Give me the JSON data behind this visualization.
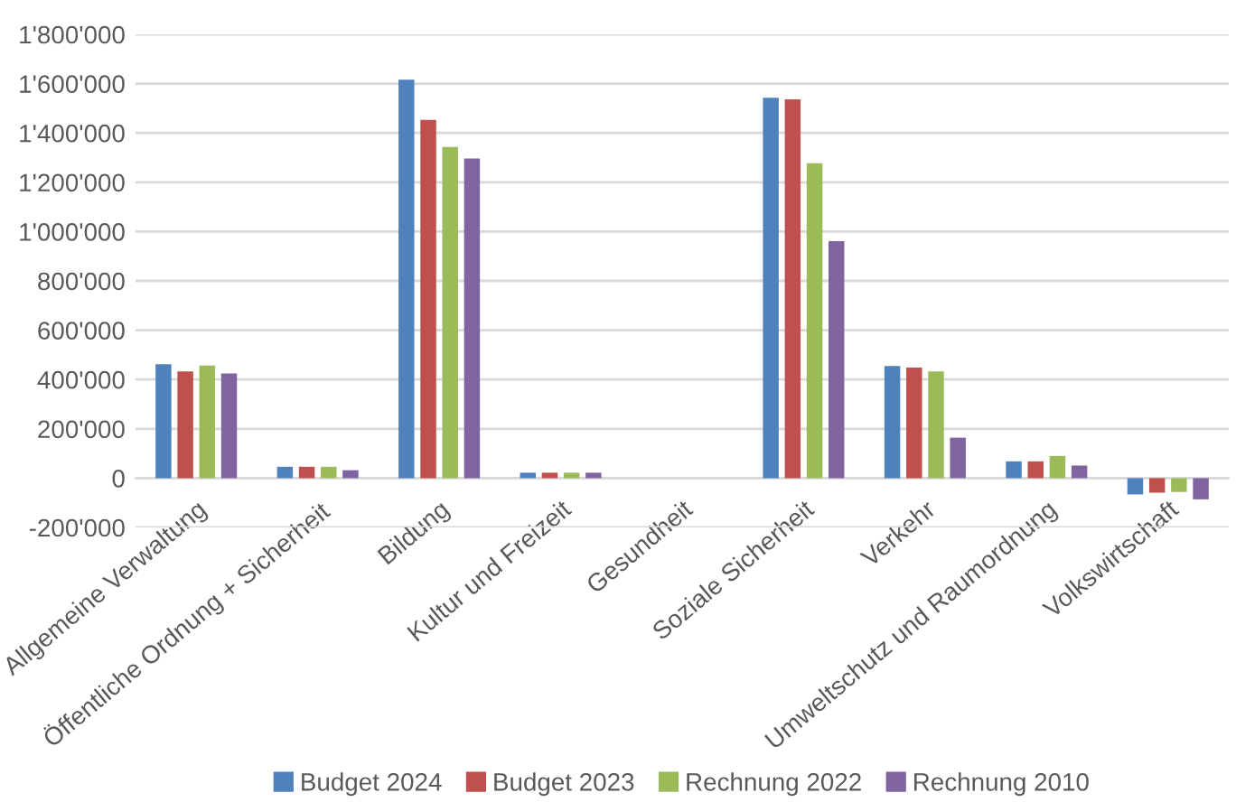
{
  "chart_data": {
    "type": "bar",
    "categories": [
      "Allgemeine Verwaltung",
      "Öffentliche Ordnung + Sicherheit",
      "Bildung",
      "Kultur und Freizeit",
      "Gesundheit",
      "Soziale Sicherheit",
      "Verkehr",
      "Umweltschutz und Raumordnung",
      "Volkswirtschaft"
    ],
    "series": [
      {
        "name": "Budget 2024",
        "color": "#4f81bd",
        "values": [
          462000,
          46000,
          1616000,
          22000,
          0,
          1543000,
          455000,
          68000,
          -66000
        ]
      },
      {
        "name": "Budget 2023",
        "color": "#c0504d",
        "values": [
          433000,
          46000,
          1453000,
          22000,
          0,
          1536000,
          448000,
          68000,
          -59000
        ]
      },
      {
        "name": "Rechnung 2022",
        "color": "#9bbb59",
        "values": [
          457000,
          46000,
          1343000,
          22000,
          0,
          1277000,
          433000,
          90000,
          -56000
        ]
      },
      {
        "name": "Rechnung 2010",
        "color": "#8064a2",
        "values": [
          425000,
          32000,
          1296000,
          22000,
          0,
          961000,
          164000,
          51000,
          -86000
        ]
      }
    ],
    "ylim": [
      -200000,
      1800000
    ],
    "yticks": [
      {
        "value": -200000,
        "label": "-200'000"
      },
      {
        "value": 0,
        "label": "0"
      },
      {
        "value": 200000,
        "label": "200'000"
      },
      {
        "value": 400000,
        "label": "400'000"
      },
      {
        "value": 600000,
        "label": "600'000"
      },
      {
        "value": 800000,
        "label": "800'000"
      },
      {
        "value": 1000000,
        "label": "1'000'000"
      },
      {
        "value": 1200000,
        "label": "1'200'000"
      },
      {
        "value": 1400000,
        "label": "1'400'000"
      },
      {
        "value": 1600000,
        "label": "1'600'000"
      },
      {
        "value": 1800000,
        "label": "1'800'000"
      }
    ],
    "grid": "y",
    "legend": "bottom"
  }
}
